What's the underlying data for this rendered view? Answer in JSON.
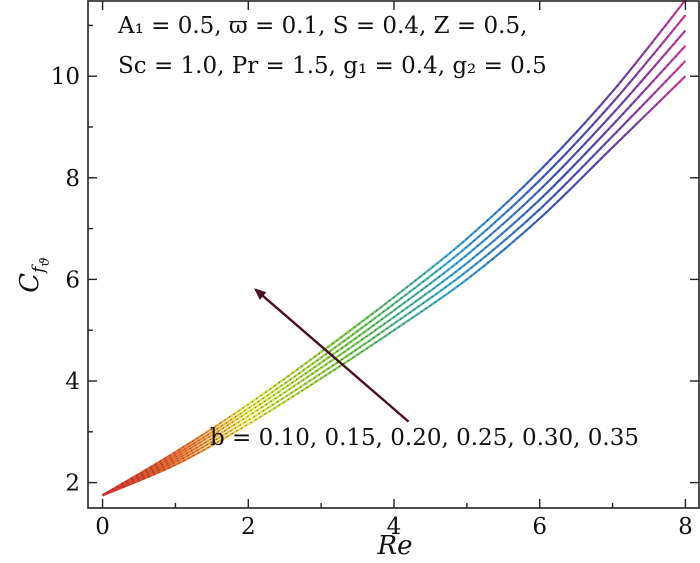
{
  "chart_data": {
    "type": "line",
    "xlabel": "Re",
    "ylabel": "C_{f_ϑ}",
    "ylabel_main": "C",
    "ylabel_sub": "f",
    "ylabel_subsub": "ϑ",
    "xlim": [
      -0.2,
      8.2
    ],
    "ylim": [
      1.5,
      11.5
    ],
    "xticks": [
      0,
      2,
      4,
      6,
      8
    ],
    "yticks": [
      2,
      4,
      6,
      8,
      10
    ],
    "grid": false,
    "parameters_line1": "A₁ = 0.5, ϖ = 0.1, S = 0.4, Z = 0.5,",
    "parameters_line2": "Sc = 1.0, Pr = 1.5, g₁ = 0.4, g₂ = 0.5",
    "arrow_label": "b = 0.10, 0.15, 0.20, 0.25, 0.30, 0.35",
    "arrow_direction": "increasing b",
    "colormap": [
      "#d42a2a",
      "#ef7a2a",
      "#e8e640",
      "#7ac943",
      "#3aa9d8",
      "#3d52b8",
      "#5a3fa0",
      "#d63a9a"
    ],
    "series": [
      {
        "b": 0.1,
        "x": [
          0,
          1,
          2,
          3,
          4,
          5,
          6,
          7,
          8
        ],
        "values": [
          1.75,
          2.35,
          3.15,
          4.05,
          5.0,
          6.0,
          7.2,
          8.6,
          10.0
        ]
      },
      {
        "b": 0.15,
        "x": [
          0,
          1,
          2,
          3,
          4,
          5,
          6,
          7,
          8
        ],
        "values": [
          1.75,
          2.4,
          3.23,
          4.15,
          5.13,
          6.16,
          7.38,
          8.82,
          10.3
        ]
      },
      {
        "b": 0.2,
        "x": [
          0,
          1,
          2,
          3,
          4,
          5,
          6,
          7,
          8
        ],
        "values": [
          1.75,
          2.45,
          3.31,
          4.26,
          5.26,
          6.32,
          7.57,
          9.04,
          10.6
        ]
      },
      {
        "b": 0.25,
        "x": [
          0,
          1,
          2,
          3,
          4,
          5,
          6,
          7,
          8
        ],
        "values": [
          1.75,
          2.5,
          3.39,
          4.36,
          5.39,
          6.48,
          7.76,
          9.26,
          10.9
        ]
      },
      {
        "b": 0.3,
        "x": [
          0,
          1,
          2,
          3,
          4,
          5,
          6,
          7,
          8
        ],
        "values": [
          1.75,
          2.55,
          3.46,
          4.46,
          5.52,
          6.64,
          7.95,
          9.48,
          11.2
        ]
      },
      {
        "b": 0.35,
        "x": [
          0,
          1,
          2,
          3,
          4,
          5,
          6,
          7,
          8
        ],
        "values": [
          1.75,
          2.6,
          3.54,
          4.57,
          5.65,
          6.8,
          8.14,
          9.7,
          11.5
        ]
      }
    ],
    "arrow": {
      "from": [
        4.2,
        3.2
      ],
      "to": [
        2.1,
        5.8
      ]
    }
  }
}
